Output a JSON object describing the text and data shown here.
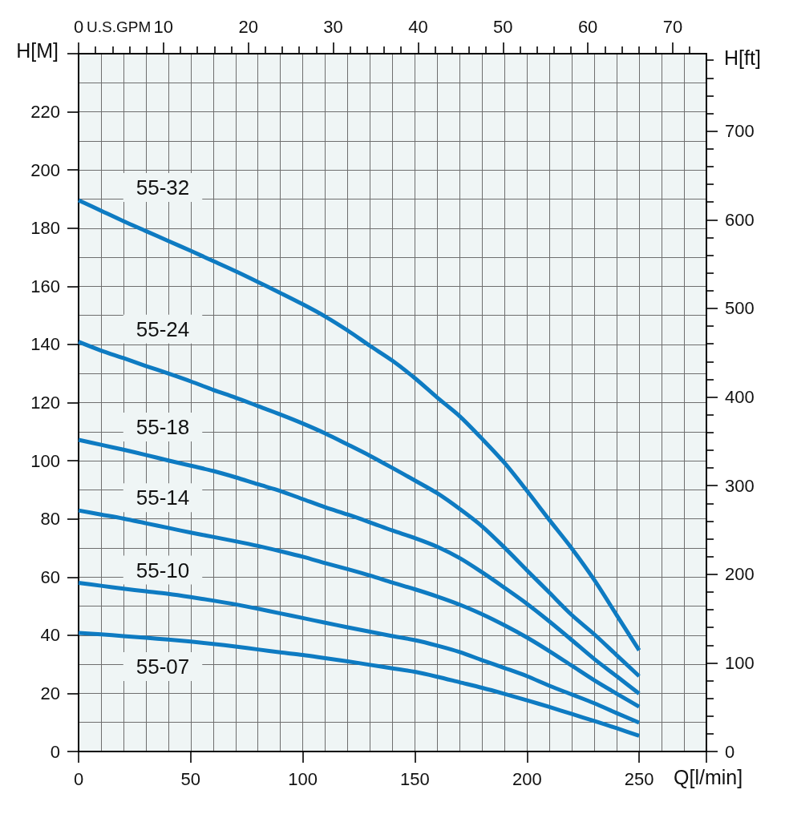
{
  "chart_data": {
    "type": "line",
    "xlabel": "Q[l/min]",
    "ylabel": "H[M]",
    "y2label": "H[ft]",
    "x2label": "U.S.GPM",
    "x": [
      0,
      10,
      20,
      30,
      40,
      50,
      60,
      70,
      80,
      90,
      100,
      110,
      120,
      130,
      140,
      150,
      160,
      170,
      180,
      190,
      200,
      210,
      220,
      230,
      240,
      250
    ],
    "series": [
      {
        "name": "55-32",
        "color": "#0e7bc2",
        "values": [
          189.6,
          186.0,
          182.4,
          179.0,
          175.6,
          172.2,
          168.7,
          165.2,
          161.5,
          157.7,
          153.8,
          149.6,
          144.8,
          139.5,
          134.4,
          128.4,
          121.7,
          115.3,
          107.5,
          99.2,
          89.6,
          79.6,
          69.8,
          59.0,
          46.9,
          34.8
        ]
      },
      {
        "name": "55-24",
        "color": "#0e7bc2",
        "values": [
          140.9,
          137.9,
          135.3,
          132.6,
          130.0,
          127.3,
          124.4,
          121.7,
          118.8,
          115.9,
          112.8,
          109.4,
          105.6,
          101.7,
          97.5,
          93.2,
          88.8,
          83.4,
          77.4,
          70.1,
          62.3,
          54.6,
          46.9,
          40.3,
          33.1,
          25.9
        ]
      },
      {
        "name": "55-18",
        "color": "#0e7bc2",
        "values": [
          107.2,
          105.5,
          103.8,
          102.0,
          100.1,
          98.3,
          96.5,
          94.3,
          91.9,
          89.6,
          86.8,
          84.0,
          81.5,
          78.8,
          76.0,
          73.4,
          70.4,
          66.5,
          61.6,
          56.3,
          50.8,
          44.7,
          38.3,
          31.8,
          25.9,
          19.9
        ]
      },
      {
        "name": "55-14",
        "color": "#0e7bc2",
        "values": [
          82.9,
          81.5,
          80.1,
          78.5,
          76.9,
          75.3,
          73.8,
          72.3,
          70.7,
          68.9,
          67.0,
          64.8,
          62.7,
          60.5,
          58.1,
          55.8,
          53.3,
          50.5,
          47.2,
          43.4,
          39.2,
          34.5,
          29.5,
          24.5,
          19.9,
          15.4
        ]
      },
      {
        "name": "55-10",
        "color": "#0e7bc2",
        "values": [
          58.0,
          57.0,
          56.0,
          55.1,
          54.2,
          53.1,
          51.9,
          50.6,
          49.1,
          47.5,
          45.9,
          44.3,
          42.7,
          41.2,
          39.7,
          38.3,
          36.4,
          34.2,
          31.4,
          28.7,
          25.9,
          22.6,
          19.6,
          16.6,
          13.2,
          9.9
        ]
      },
      {
        "name": "55-07",
        "color": "#0e7bc2",
        "values": [
          40.8,
          40.3,
          39.7,
          39.1,
          38.5,
          37.8,
          37.0,
          36.1,
          35.1,
          34.1,
          33.2,
          32.1,
          31.0,
          29.8,
          28.6,
          27.4,
          25.7,
          23.8,
          21.9,
          19.8,
          17.6,
          15.3,
          12.9,
          10.5,
          8.0,
          5.4
        ]
      }
    ],
    "xlim": [
      0,
      280
    ],
    "xticks": [
      0,
      {
        "value": 10,
        "label": null
      },
      {
        "value": 20,
        "label": null
      },
      {
        "value": 30,
        "label": null
      },
      {
        "value": 40,
        "label": null
      },
      50,
      {
        "value": 60,
        "label": null
      },
      {
        "value": 70,
        "label": null
      },
      {
        "value": 80,
        "label": null
      },
      {
        "value": 90,
        "label": null
      },
      100,
      {
        "value": 110,
        "label": null
      },
      {
        "value": 120,
        "label": null
      },
      {
        "value": 130,
        "label": null
      },
      {
        "value": 140,
        "label": null
      },
      150,
      {
        "value": 160,
        "label": null
      },
      {
        "value": 170,
        "label": null
      },
      {
        "value": 180,
        "label": null
      },
      {
        "value": 190,
        "label": null
      },
      200,
      {
        "value": 210,
        "label": null
      },
      {
        "value": 220,
        "label": null
      },
      {
        "value": 230,
        "label": null
      },
      {
        "value": 240,
        "label": null
      },
      250,
      {
        "value": 260,
        "label": null
      },
      {
        "value": 270,
        "label": null
      },
      {
        "value": 280,
        "label": null
      }
    ],
    "ylim": [
      0,
      240
    ],
    "yticks": [
      0,
      {
        "value": 10,
        "label": null
      },
      20,
      {
        "value": 30,
        "label": null
      },
      40,
      {
        "value": 50,
        "label": null
      },
      60,
      {
        "value": 70,
        "label": null
      },
      80,
      {
        "value": 90,
        "label": null
      },
      100,
      {
        "value": 110,
        "label": null
      },
      120,
      {
        "value": 130,
        "label": null
      },
      140,
      {
        "value": 150,
        "label": null
      },
      160,
      {
        "value": 170,
        "label": null
      },
      180,
      {
        "value": 190,
        "label": null
      },
      200,
      {
        "value": 210,
        "label": null
      },
      220,
      {
        "value": 230,
        "label": null
      },
      {
        "value": 240,
        "label": null
      }
    ],
    "x2lim": [
      0,
      73.97
    ],
    "x2ticks": [
      0,
      {
        "value": 2,
        "label": null
      },
      {
        "value": 4,
        "label": null
      },
      {
        "value": 6,
        "label": null
      },
      {
        "value": 8,
        "label": null
      },
      10,
      {
        "value": 12,
        "label": null
      },
      {
        "value": 14,
        "label": null
      },
      {
        "value": 16,
        "label": null
      },
      {
        "value": 18,
        "label": null
      },
      20,
      {
        "value": 22,
        "label": null
      },
      {
        "value": 24,
        "label": null
      },
      {
        "value": 26,
        "label": null
      },
      {
        "value": 28,
        "label": null
      },
      30,
      {
        "value": 32,
        "label": null
      },
      {
        "value": 34,
        "label": null
      },
      {
        "value": 36,
        "label": null
      },
      {
        "value": 38,
        "label": null
      },
      40,
      {
        "value": 42,
        "label": null
      },
      {
        "value": 44,
        "label": null
      },
      {
        "value": 46,
        "label": null
      },
      {
        "value": 48,
        "label": null
      },
      50,
      {
        "value": 52,
        "label": null
      },
      {
        "value": 54,
        "label": null
      },
      {
        "value": 56,
        "label": null
      },
      {
        "value": 58,
        "label": null
      },
      60,
      {
        "value": 62,
        "label": null
      },
      {
        "value": 64,
        "label": null
      },
      {
        "value": 66,
        "label": null
      },
      {
        "value": 68,
        "label": null
      },
      70,
      {
        "value": 72,
        "label": null
      }
    ],
    "y2lim": [
      0,
      787.4
    ],
    "y2ticks": [
      0,
      {
        "value": 20,
        "label": null
      },
      {
        "value": 40,
        "label": null
      },
      {
        "value": 60,
        "label": null
      },
      {
        "value": 80,
        "label": null
      },
      100,
      {
        "value": 120,
        "label": null
      },
      {
        "value": 140,
        "label": null
      },
      {
        "value": 160,
        "label": null
      },
      {
        "value": 180,
        "label": null
      },
      200,
      {
        "value": 220,
        "label": null
      },
      {
        "value": 240,
        "label": null
      },
      {
        "value": 260,
        "label": null
      },
      {
        "value": 280,
        "label": null
      },
      300,
      {
        "value": 320,
        "label": null
      },
      {
        "value": 340,
        "label": null
      },
      {
        "value": 360,
        "label": null
      },
      {
        "value": 380,
        "label": null
      },
      400,
      {
        "value": 420,
        "label": null
      },
      {
        "value": 440,
        "label": null
      },
      {
        "value": 460,
        "label": null
      },
      {
        "value": 480,
        "label": null
      },
      500,
      {
        "value": 520,
        "label": null
      },
      {
        "value": 540,
        "label": null
      },
      {
        "value": 560,
        "label": null
      },
      {
        "value": 580,
        "label": null
      },
      600,
      {
        "value": 620,
        "label": null
      },
      {
        "value": 640,
        "label": null
      },
      {
        "value": 660,
        "label": null
      },
      {
        "value": 680,
        "label": null
      },
      700,
      {
        "value": 720,
        "label": null
      },
      {
        "value": 740,
        "label": null
      },
      {
        "value": 760,
        "label": null
      },
      {
        "value": 780,
        "label": null
      }
    ],
    "grid": true,
    "marker": "none",
    "line_style": "solid"
  }
}
